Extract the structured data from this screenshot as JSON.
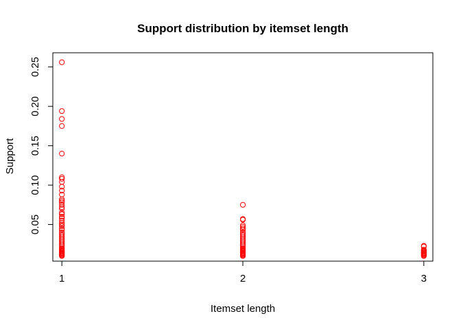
{
  "chart_data": {
    "type": "scatter",
    "title": "Support distribution by itemset length",
    "xlabel": "Itemset length",
    "ylabel": "Support",
    "xlim": [
      0.95,
      3.05
    ],
    "ylim": [
      0.0035,
      0.268
    ],
    "x_ticks": [
      1,
      2,
      3
    ],
    "x_tick_labels": [
      "1",
      "2",
      "3"
    ],
    "y_ticks": [
      0.05,
      0.1,
      0.15,
      0.2,
      0.25
    ],
    "y_tick_labels": [
      "0.05",
      "0.10",
      "0.15",
      "0.20",
      "0.25"
    ],
    "grid": false,
    "marker": "open-circle",
    "marker_color": "#ff0000",
    "points": [
      {
        "x": 1,
        "y": 0.256
      },
      {
        "x": 1,
        "y": 0.194
      },
      {
        "x": 1,
        "y": 0.184
      },
      {
        "x": 1,
        "y": 0.175
      },
      {
        "x": 1,
        "y": 0.14
      },
      {
        "x": 1,
        "y": 0.11
      },
      {
        "x": 1,
        "y": 0.108
      },
      {
        "x": 1,
        "y": 0.104
      },
      {
        "x": 1,
        "y": 0.098
      },
      {
        "x": 1,
        "y": 0.093
      },
      {
        "x": 1,
        "y": 0.088
      },
      {
        "x": 1,
        "y": 0.082
      },
      {
        "x": 1,
        "y": 0.08
      },
      {
        "x": 1,
        "y": 0.078
      },
      {
        "x": 1,
        "y": 0.075
      },
      {
        "x": 1,
        "y": 0.072
      },
      {
        "x": 1,
        "y": 0.07
      },
      {
        "x": 1,
        "y": 0.065
      },
      {
        "x": 1,
        "y": 0.063
      },
      {
        "x": 1,
        "y": 0.06
      },
      {
        "x": 1,
        "y": 0.058
      },
      {
        "x": 1,
        "y": 0.055
      },
      {
        "x": 1,
        "y": 0.052
      },
      {
        "x": 1,
        "y": 0.05
      },
      {
        "x": 1,
        "y": 0.048
      },
      {
        "x": 1,
        "y": 0.045
      },
      {
        "x": 1,
        "y": 0.043
      },
      {
        "x": 1,
        "y": 0.04
      },
      {
        "x": 1,
        "y": 0.038
      },
      {
        "x": 1,
        "y": 0.036
      },
      {
        "x": 1,
        "y": 0.034
      },
      {
        "x": 1,
        "y": 0.032
      },
      {
        "x": 1,
        "y": 0.03
      },
      {
        "x": 1,
        "y": 0.028
      },
      {
        "x": 1,
        "y": 0.026
      },
      {
        "x": 1,
        "y": 0.024
      },
      {
        "x": 1,
        "y": 0.022
      },
      {
        "x": 1,
        "y": 0.02
      },
      {
        "x": 1,
        "y": 0.019
      },
      {
        "x": 1,
        "y": 0.018
      },
      {
        "x": 1,
        "y": 0.017
      },
      {
        "x": 1,
        "y": 0.016
      },
      {
        "x": 1,
        "y": 0.015
      },
      {
        "x": 1,
        "y": 0.014
      },
      {
        "x": 1,
        "y": 0.013
      },
      {
        "x": 1,
        "y": 0.012
      },
      {
        "x": 1,
        "y": 0.011
      },
      {
        "x": 1,
        "y": 0.01
      },
      {
        "x": 2,
        "y": 0.075
      },
      {
        "x": 2,
        "y": 0.057
      },
      {
        "x": 2,
        "y": 0.056
      },
      {
        "x": 2,
        "y": 0.049
      },
      {
        "x": 2,
        "y": 0.047
      },
      {
        "x": 2,
        "y": 0.045
      },
      {
        "x": 2,
        "y": 0.043
      },
      {
        "x": 2,
        "y": 0.04
      },
      {
        "x": 2,
        "y": 0.038
      },
      {
        "x": 2,
        "y": 0.036
      },
      {
        "x": 2,
        "y": 0.034
      },
      {
        "x": 2,
        "y": 0.032
      },
      {
        "x": 2,
        "y": 0.03
      },
      {
        "x": 2,
        "y": 0.028
      },
      {
        "x": 2,
        "y": 0.026
      },
      {
        "x": 2,
        "y": 0.024
      },
      {
        "x": 2,
        "y": 0.022
      },
      {
        "x": 2,
        "y": 0.02
      },
      {
        "x": 2,
        "y": 0.019
      },
      {
        "x": 2,
        "y": 0.018
      },
      {
        "x": 2,
        "y": 0.017
      },
      {
        "x": 2,
        "y": 0.016
      },
      {
        "x": 2,
        "y": 0.015
      },
      {
        "x": 2,
        "y": 0.014
      },
      {
        "x": 2,
        "y": 0.013
      },
      {
        "x": 2,
        "y": 0.012
      },
      {
        "x": 2,
        "y": 0.011
      },
      {
        "x": 2,
        "y": 0.01
      },
      {
        "x": 3,
        "y": 0.023
      },
      {
        "x": 3,
        "y": 0.022
      },
      {
        "x": 3,
        "y": 0.018
      },
      {
        "x": 3,
        "y": 0.017
      },
      {
        "x": 3,
        "y": 0.016
      },
      {
        "x": 3,
        "y": 0.015
      },
      {
        "x": 3,
        "y": 0.014
      },
      {
        "x": 3,
        "y": 0.013
      },
      {
        "x": 3,
        "y": 0.012
      },
      {
        "x": 3,
        "y": 0.011
      },
      {
        "x": 3,
        "y": 0.01
      }
    ]
  }
}
